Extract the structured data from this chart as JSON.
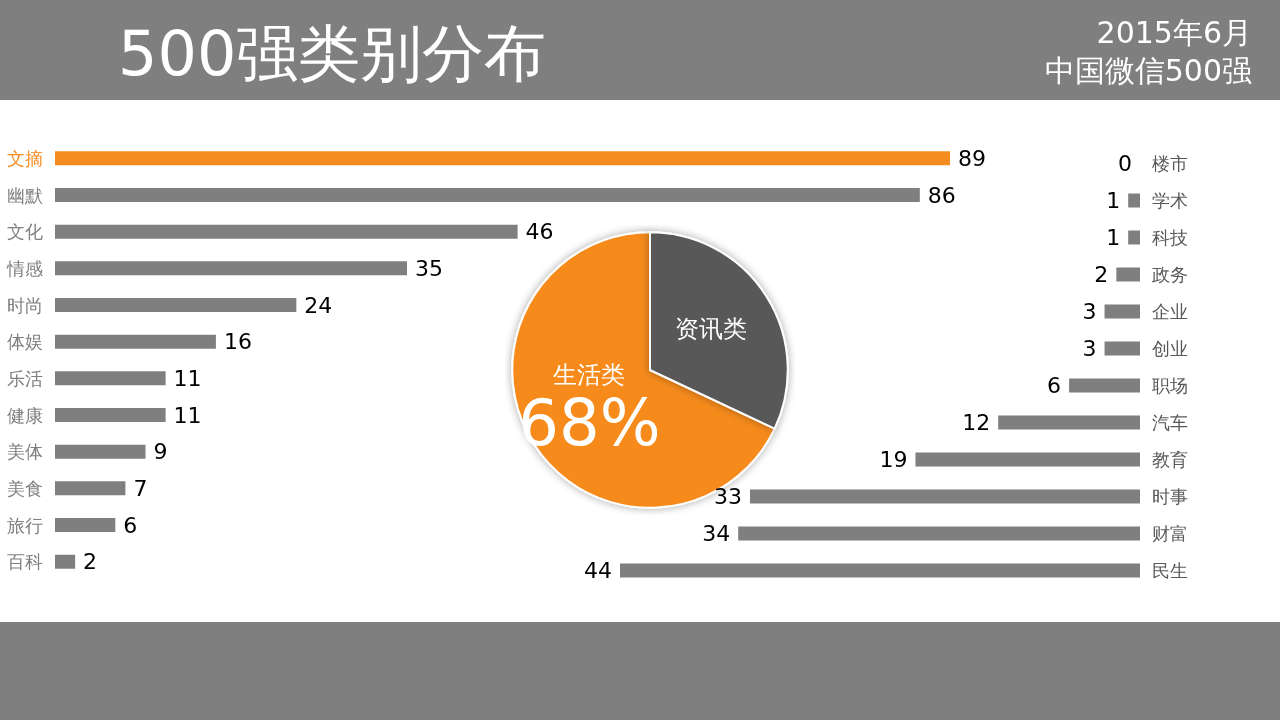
{
  "chart_data": [
    {
      "type": "bar",
      "orientation": "horizontal",
      "title": "500强类别分布",
      "annotations": [
        "2015年6月",
        "中国微信500强"
      ],
      "categories": [
        "文摘",
        "幽默",
        "文化",
        "情感",
        "时尚",
        "体娱",
        "乐活",
        "健康",
        "美体",
        "美食",
        "旅行",
        "百科"
      ],
      "values": [
        89,
        86,
        46,
        35,
        24,
        16,
        11,
        11,
        9,
        7,
        6,
        2
      ],
      "colors": [
        "#f68b1f",
        "#7f7f7f",
        "#7f7f7f",
        "#7f7f7f",
        "#7f7f7f",
        "#7f7f7f",
        "#7f7f7f",
        "#7f7f7f",
        "#7f7f7f",
        "#7f7f7f",
        "#7f7f7f",
        "#7f7f7f"
      ],
      "data_labels": true
    },
    {
      "type": "pie",
      "categories": [
        "生活类",
        "资讯类"
      ],
      "values": [
        68,
        32
      ],
      "colors": [
        "#f68b1f",
        "#595959"
      ],
      "value_labels": [
        "68%",
        null
      ]
    },
    {
      "type": "bar",
      "orientation": "horizontal",
      "categories": [
        "楼市",
        "学术",
        "科技",
        "政务",
        "企业",
        "创业",
        "职场",
        "汽车",
        "教育",
        "时事",
        "财富",
        "民生"
      ],
      "values": [
        0,
        1,
        1,
        2,
        3,
        3,
        6,
        12,
        19,
        33,
        34,
        44
      ],
      "color": "#7f7f7f",
      "data_labels": true
    }
  ]
}
